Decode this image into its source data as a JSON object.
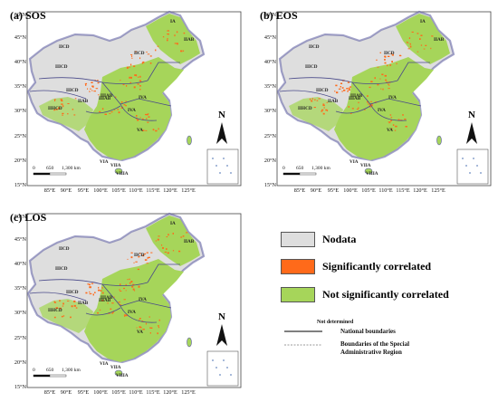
{
  "panels": [
    {
      "title": "(a) SOS"
    },
    {
      "title": "(b) EOS"
    },
    {
      "title": "(c) LOS"
    }
  ],
  "lat_labels": [
    "50°N",
    "45°N",
    "40°N",
    "35°N",
    "30°N",
    "25°N",
    "20°N",
    "15°N"
  ],
  "lon_labels": [
    "85°E",
    "90°E",
    "95°E",
    "100°E",
    "105°E",
    "110°E",
    "115°E",
    "120°E",
    "125°E"
  ],
  "scale": {
    "zero": "0",
    "mid": "650",
    "end": "1,300 km"
  },
  "north": "N",
  "regions": [
    "IA",
    "IIAB",
    "IICD",
    "IIICD",
    "IIICD",
    "IIAB",
    "IIIAB",
    "IVA",
    "IVA",
    "VA",
    "IIHCD",
    "VIA",
    "VIIA",
    "VIIIA",
    "IIIAB",
    "IICD"
  ],
  "legend": {
    "items": [
      {
        "label": "Nodata",
        "color": "#dedede"
      },
      {
        "label": "Significantly correlated",
        "color": "#ff6a1a"
      },
      {
        "label": "Not significantly correlated",
        "color": "#a6d55a"
      }
    ],
    "not_determined": "Not determined",
    "national_boundaries": "National boundaries",
    "sar_boundaries_line1": "Boundaries of the Special",
    "sar_boundaries_line2": "Administrative Region"
  },
  "colors": {
    "nodata": "#dedede",
    "significant": "#ff6a1a",
    "not_significant": "#a6d55a",
    "border": "#5a5aa0"
  }
}
